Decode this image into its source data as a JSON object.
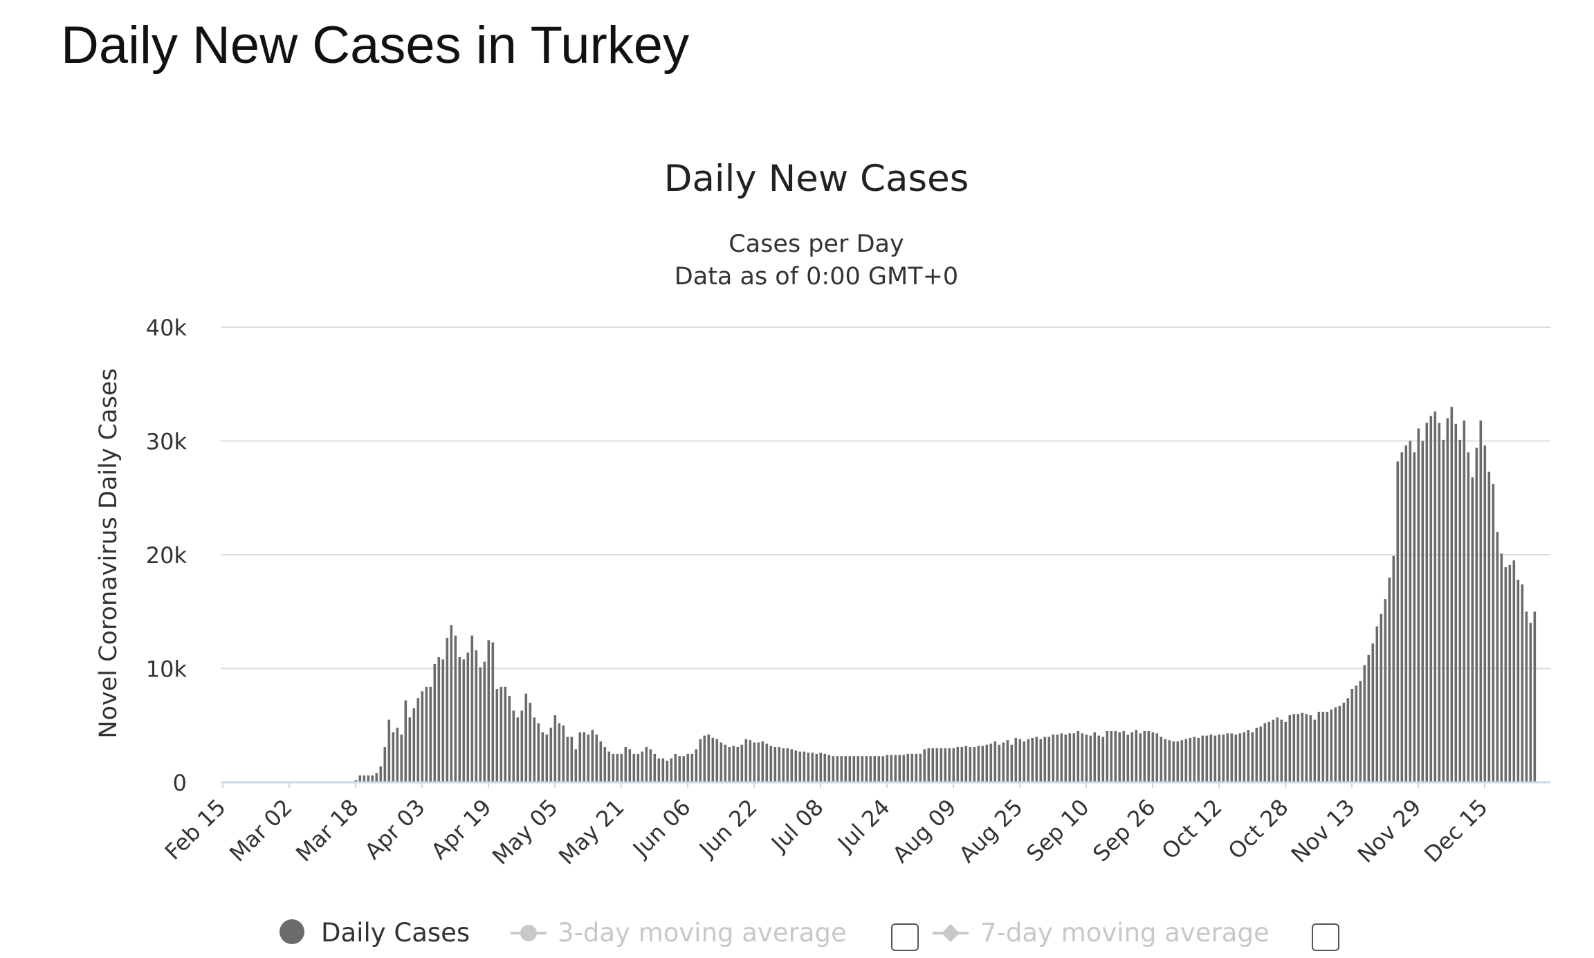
{
  "page_title": "Daily New Cases in Turkey",
  "colors": {
    "bar": "#6b6b6b",
    "grid": "#dedede",
    "baseline": "#ccd6eb",
    "inactive": "#c8c8c8",
    "text": "#333333"
  },
  "chart_data": {
    "type": "bar",
    "title": "Daily New Cases",
    "subtitle_lines": [
      "Cases per Day",
      "Data as of 0:00 GMT+0"
    ],
    "ylabel": "Novel Coronavirus Daily Cases",
    "xlabel": "",
    "ylim": [
      0,
      40000
    ],
    "yticks": [
      0,
      10000,
      20000,
      30000,
      40000
    ],
    "ytick_labels": [
      "0",
      "10k",
      "20k",
      "30k",
      "40k"
    ],
    "grid": true,
    "x_start": "Feb 15",
    "xtick_every_days": 16,
    "xtick_labels": [
      "Feb 15",
      "Mar 02",
      "Mar 18",
      "Apr 03",
      "Apr 19",
      "May 05",
      "May 21",
      "Jun 06",
      "Jun 22",
      "Jul 08",
      "Jul 24",
      "Aug 09",
      "Aug 25",
      "Sep 10",
      "Sep 26",
      "Oct 12",
      "Oct 28",
      "Nov 13",
      "Nov 29",
      "Dec 15"
    ],
    "series": [
      {
        "name": "Daily Cases",
        "values_k_note": "values in thousands, one per day starting Feb 15",
        "values": [
          0,
          0,
          0,
          0,
          0,
          0,
          0,
          0,
          0,
          0,
          0,
          0,
          0,
          0,
          0,
          0,
          0,
          0,
          0,
          0,
          0,
          0,
          0,
          0,
          0,
          0,
          0,
          0,
          0,
          0,
          0,
          0,
          0.18,
          0.6,
          0.6,
          0.6,
          0.6,
          0.8,
          1.4,
          3.1,
          5.5,
          4.4,
          4.8,
          4.2,
          7.2,
          5.7,
          6.5,
          7.4,
          8.0,
          8.4,
          8.4,
          10.4,
          11.0,
          10.8,
          12.7,
          13.8,
          12.9,
          11.0,
          10.8,
          11.4,
          12.9,
          11.6,
          10.1,
          10.6,
          12.5,
          12.3,
          8.2,
          8.4,
          8.4,
          7.6,
          6.3,
          5.7,
          6.3,
          7.8,
          7.0,
          5.7,
          5.2,
          4.4,
          4.2,
          4.8,
          5.9,
          5.2,
          5.0,
          4.0,
          4.0,
          2.9,
          4.4,
          4.4,
          4.2,
          4.6,
          4.2,
          3.6,
          3.1,
          2.7,
          2.5,
          2.5,
          2.5,
          3.1,
          2.9,
          2.5,
          2.5,
          2.7,
          3.1,
          2.9,
          2.5,
          2.1,
          2.1,
          1.9,
          2.1,
          2.5,
          2.3,
          2.3,
          2.5,
          2.5,
          2.9,
          3.8,
          4.1,
          4.2,
          3.9,
          3.8,
          3.5,
          3.3,
          3.1,
          3.2,
          3.1,
          3.3,
          3.8,
          3.7,
          3.5,
          3.5,
          3.6,
          3.4,
          3.2,
          3.1,
          3.1,
          3.0,
          3.0,
          2.9,
          2.8,
          2.7,
          2.7,
          2.6,
          2.6,
          2.5,
          2.6,
          2.5,
          2.4,
          2.3,
          2.3,
          2.3,
          2.3,
          2.3,
          2.3,
          2.3,
          2.3,
          2.3,
          2.3,
          2.3,
          2.3,
          2.3,
          2.4,
          2.4,
          2.4,
          2.4,
          2.4,
          2.5,
          2.5,
          2.5,
          2.5,
          2.9,
          3.0,
          3.0,
          3.0,
          3.0,
          3.0,
          3.0,
          3.0,
          3.1,
          3.1,
          3.2,
          3.1,
          3.1,
          3.2,
          3.2,
          3.3,
          3.4,
          3.6,
          3.3,
          3.5,
          3.7,
          3.3,
          3.9,
          3.8,
          3.6,
          3.8,
          3.9,
          4.0,
          3.8,
          4.0,
          4.0,
          4.2,
          4.2,
          4.3,
          4.2,
          4.3,
          4.3,
          4.5,
          4.3,
          4.2,
          4.1,
          4.4,
          4.1,
          4.0,
          4.5,
          4.5,
          4.5,
          4.4,
          4.5,
          4.2,
          4.4,
          4.6,
          4.3,
          4.5,
          4.5,
          4.4,
          4.3,
          4.0,
          3.8,
          3.7,
          3.6,
          3.6,
          3.7,
          3.8,
          3.9,
          4.0,
          3.9,
          4.1,
          4.1,
          4.2,
          4.1,
          4.2,
          4.2,
          4.3,
          4.3,
          4.2,
          4.3,
          4.4,
          4.6,
          4.4,
          4.8,
          4.9,
          5.2,
          5.3,
          5.5,
          5.7,
          5.5,
          5.3,
          5.9,
          6.0,
          6.0,
          6.1,
          6.0,
          5.9,
          5.5,
          6.2,
          6.2,
          6.2,
          6.4,
          6.6,
          6.7,
          7.0,
          7.4,
          8.2,
          8.5,
          8.9,
          10.3,
          11.2,
          12.2,
          13.7,
          14.8,
          16.1,
          18.0,
          19.9,
          28.2,
          29.0,
          29.6,
          30.0,
          29.0,
          31.1,
          30.0,
          31.6,
          32.2,
          32.6,
          31.6,
          30.1,
          32.0,
          33.0,
          31.5,
          30.1,
          31.8,
          29.0,
          26.8,
          29.4,
          31.8,
          29.6,
          27.3,
          26.2,
          22.0,
          20.1,
          18.9,
          19.1,
          19.5,
          17.8,
          17.4,
          15.0,
          14.0,
          15.0
        ]
      }
    ],
    "legend": {
      "placement": "bottom-center",
      "items": [
        {
          "label": "Daily Cases",
          "active": true,
          "marker": "circle"
        },
        {
          "label": "3-day moving average",
          "active": false,
          "marker": "line-circle",
          "checkbox": false
        },
        {
          "label": "7-day moving average",
          "active": false,
          "marker": "line-diamond",
          "checkbox": false
        }
      ]
    }
  }
}
